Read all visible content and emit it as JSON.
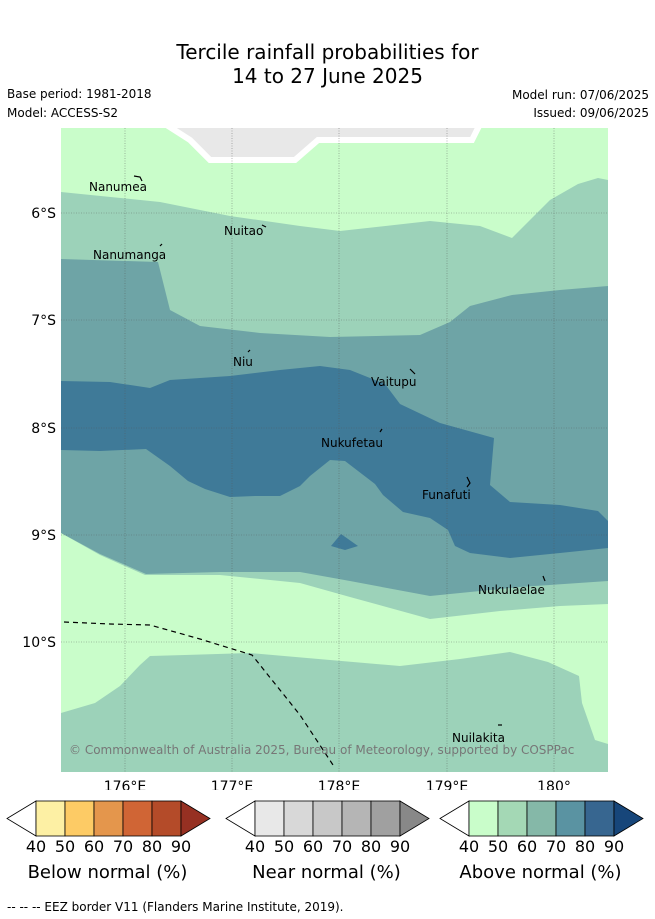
{
  "header": {
    "title_line1": "Tercile rainfall probabilities for",
    "title_line2": "14 to 27 June 2025",
    "base_period": "Base period: 1981-2018",
    "model": "Model: ACCESS-S2",
    "model_run": "Model run: 07/06/2025",
    "issued": "Issued: 09/06/2025"
  },
  "map": {
    "lat_labels": [
      "6°S",
      "7°S",
      "8°S",
      "9°S",
      "10°S"
    ],
    "lon_labels": [
      "176°E",
      "177°E",
      "178°E",
      "179°E",
      "180°"
    ],
    "islands": [
      "Nanumea",
      "Nuitao",
      "Nanumanga",
      "Niu",
      "Vaitupu",
      "Nukufetau",
      "Funafuti",
      "Nukulaelae",
      "Nuilakita"
    ],
    "copyright": "© Commonwealth of Australia 2025, Bureau of Meteorology, supported by COSPPac",
    "colors": {
      "above_40": "#c9fdca",
      "above_50": "#9cd2b9",
      "above_60": "#6ea4a6",
      "above_70": "#3f7a98",
      "near_normal_patch": "#e8e8e8"
    }
  },
  "colorbars": [
    {
      "title": "Below normal (%)",
      "ticks": [
        "40",
        "50",
        "60",
        "70",
        "80",
        "90"
      ],
      "colors": [
        "#ffffff",
        "#fdf0a4",
        "#fdcb65",
        "#e4964c",
        "#d06535",
        "#b44b29",
        "#963022"
      ]
    },
    {
      "title": "Near normal (%)",
      "ticks": [
        "40",
        "50",
        "60",
        "70",
        "80",
        "90"
      ],
      "colors": [
        "#ffffff",
        "#e8e8e8",
        "#d8d8d8",
        "#c8c8c8",
        "#b5b5b5",
        "#a0a0a0",
        "#888888"
      ]
    },
    {
      "title": "Above normal (%)",
      "ticks": [
        "40",
        "50",
        "60",
        "70",
        "80",
        "90"
      ],
      "colors": [
        "#ffffff",
        "#c9fdca",
        "#a4d8b5",
        "#85b8a8",
        "#5a93a2",
        "#376690",
        "#17467a"
      ]
    }
  ],
  "footer": {
    "eez_note": "-- -- -- EEZ border V11 (Flanders Marine Institute, 2019)."
  }
}
